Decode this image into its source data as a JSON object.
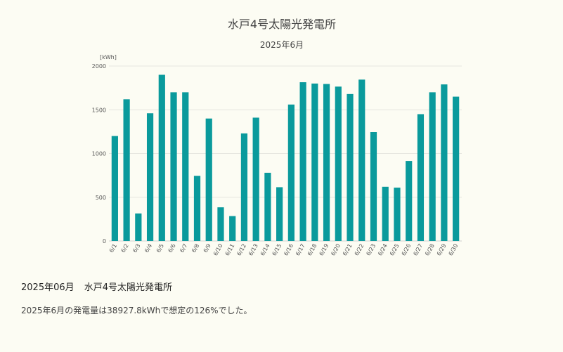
{
  "chart_data": {
    "type": "bar",
    "title": "水戸4号太陽光発電所",
    "subtitle": "2025年6月",
    "unit_label": "[kWh]",
    "xlabel": "",
    "ylabel": "",
    "ylim": [
      0,
      2000
    ],
    "yticks": [
      0,
      500,
      1000,
      1500,
      2000
    ],
    "grid": true,
    "bar_color": "#0a9a9c",
    "categories": [
      "6/1",
      "6/2",
      "6/3",
      "6/4",
      "6/5",
      "6/6",
      "6/7",
      "6/8",
      "6/9",
      "6/10",
      "6/11",
      "6/12",
      "6/13",
      "6/14",
      "6/15",
      "6/16",
      "6/17",
      "6/18",
      "6/19",
      "6/20",
      "6/21",
      "6/22",
      "6/23",
      "6/24",
      "6/25",
      "6/26",
      "6/27",
      "6/28",
      "6/29",
      "6/30"
    ],
    "values": [
      1200,
      1620,
      315,
      1460,
      1900,
      1700,
      1700,
      745,
      1400,
      385,
      285,
      1230,
      1410,
      780,
      615,
      1560,
      1815,
      1800,
      1795,
      1765,
      1680,
      1845,
      1245,
      620,
      610,
      915,
      1450,
      1700,
      1790,
      1650
    ]
  },
  "summary": {
    "period": "2025年06月",
    "plant": "水戸4号太陽光発電所",
    "text": "2025年6月の発電量は38927.8kWhで想定の126%でした。"
  }
}
